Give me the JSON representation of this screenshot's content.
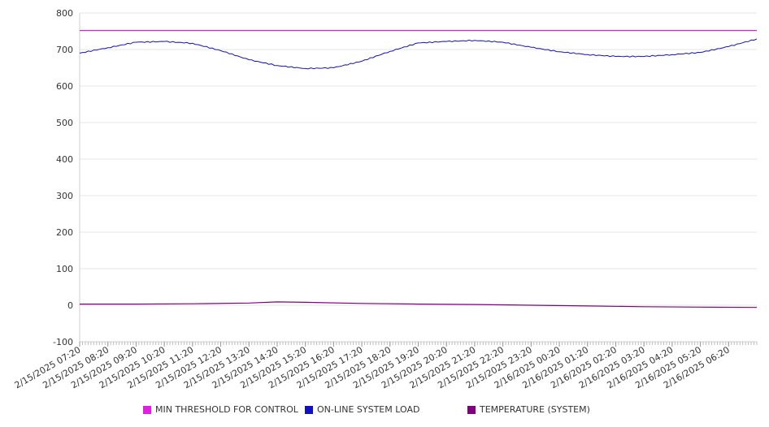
{
  "chart_data": {
    "type": "line",
    "title": "",
    "xlabel": "",
    "ylabel": "",
    "ylim": [
      -100,
      800
    ],
    "y_ticks": [
      "800",
      "700",
      "600",
      "500",
      "400",
      "300",
      "200",
      "100",
      "0",
      "-100"
    ],
    "x_range": [
      "2/15/2025 07:20",
      "2/16/2025 07:20"
    ],
    "x_ticks": [
      "2/15/2025 07:20",
      "2/15/2025 08:20",
      "2/15/2025 09:20",
      "2/15/2025 10:20",
      "2/15/2025 11:20",
      "2/15/2025 12:20",
      "2/15/2025 13:20",
      "2/15/2025 14:20",
      "2/15/2025 15:20",
      "2/15/2025 16:20",
      "2/15/2025 17:20",
      "2/15/2025 18:20",
      "2/15/2025 19:20",
      "2/15/2025 20:20",
      "2/15/2025 21:20",
      "2/15/2025 22:20",
      "2/15/2025 23:20",
      "2/16/2025 00:20",
      "2/16/2025 01:20",
      "2/16/2025 02:20",
      "2/16/2025 03:20",
      "2/16/2025 04:20",
      "2/16/2025 05:20",
      "2/16/2025 06:20"
    ],
    "grid": true,
    "legend_position": "bottom",
    "series": [
      {
        "name": "MIN THRESHOLD FOR CONTROL",
        "color": "#e020e0",
        "points": [
          [
            "2/15/2025 07:20",
            752
          ],
          [
            "2/16/2025 07:20",
            752
          ]
        ]
      },
      {
        "name": "ON-LINE SYSTEM LOAD",
        "color": "#1010c0",
        "points": [
          [
            "2/15/2025 07:20",
            690
          ],
          [
            "2/15/2025 08:20",
            705
          ],
          [
            "2/15/2025 09:20",
            720
          ],
          [
            "2/15/2025 10:20",
            722
          ],
          [
            "2/15/2025 11:20",
            717
          ],
          [
            "2/15/2025 12:20",
            697
          ],
          [
            "2/15/2025 13:20",
            672
          ],
          [
            "2/15/2025 14:20",
            656
          ],
          [
            "2/15/2025 15:20",
            648
          ],
          [
            "2/15/2025 16:20",
            650
          ],
          [
            "2/15/2025 17:20",
            668
          ],
          [
            "2/15/2025 18:20",
            695
          ],
          [
            "2/15/2025 19:20",
            718
          ],
          [
            "2/15/2025 20:20",
            722
          ],
          [
            "2/15/2025 21:20",
            725
          ],
          [
            "2/15/2025 22:20",
            720
          ],
          [
            "2/15/2025 23:20",
            706
          ],
          [
            "2/16/2025 00:20",
            694
          ],
          [
            "2/16/2025 01:20",
            686
          ],
          [
            "2/16/2025 02:20",
            681
          ],
          [
            "2/16/2025 03:20",
            681
          ],
          [
            "2/16/2025 04:20",
            686
          ],
          [
            "2/16/2025 05:20",
            692
          ],
          [
            "2/16/2025 06:20",
            708
          ],
          [
            "2/16/2025 07:20",
            729
          ]
        ]
      },
      {
        "name": "TEMPERATURE (SYSTEM)",
        "color": "#800080",
        "points": [
          [
            "2/15/2025 07:20",
            3
          ],
          [
            "2/15/2025 09:20",
            3
          ],
          [
            "2/15/2025 11:20",
            4
          ],
          [
            "2/15/2025 13:20",
            6
          ],
          [
            "2/15/2025 14:20",
            9
          ],
          [
            "2/15/2025 15:20",
            8
          ],
          [
            "2/15/2025 17:20",
            5
          ],
          [
            "2/15/2025 19:20",
            3
          ],
          [
            "2/15/2025 21:20",
            2
          ],
          [
            "2/15/2025 23:20",
            0
          ],
          [
            "2/16/2025 01:20",
            -2
          ],
          [
            "2/16/2025 03:20",
            -4
          ],
          [
            "2/16/2025 05:20",
            -5
          ],
          [
            "2/16/2025 07:20",
            -6
          ]
        ]
      }
    ]
  }
}
